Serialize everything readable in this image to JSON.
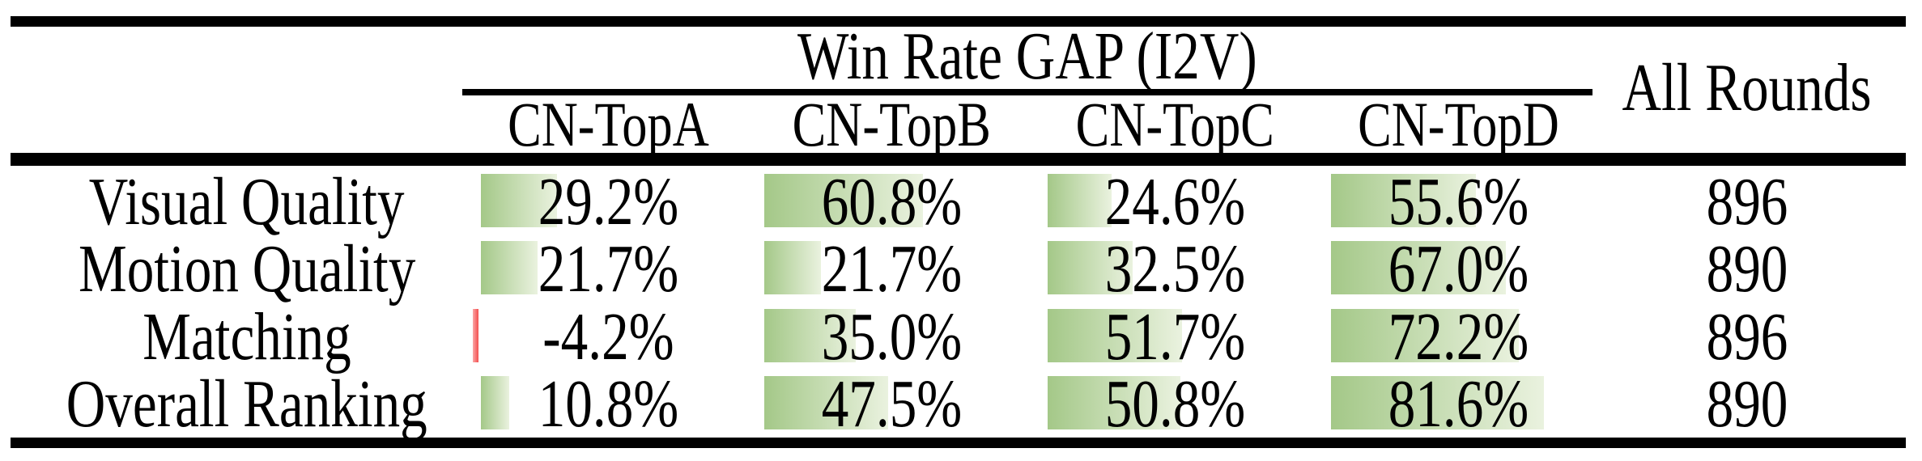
{
  "table": {
    "title": "Win Rate GAP (I2V)",
    "all_rounds_label": "All Rounds",
    "columns": [
      "CN-TopA",
      "CN-TopB",
      "CN-TopC",
      "CN-TopD"
    ],
    "rows": [
      {
        "label": "Visual Quality",
        "values": [
          29.2,
          60.8,
          24.6,
          55.6
        ],
        "display": [
          "29.2%",
          "60.8%",
          "24.6%",
          "55.6%"
        ],
        "all_rounds": "896"
      },
      {
        "label": "Motion Quality",
        "values": [
          21.7,
          21.7,
          32.5,
          67.0
        ],
        "display": [
          "21.7%",
          "21.7%",
          "32.5%",
          "67.0%"
        ],
        "all_rounds": "890"
      },
      {
        "label": "Matching",
        "values": [
          -4.2,
          35.0,
          51.7,
          72.2
        ],
        "display": [
          "-4.2%",
          "35.0%",
          "51.7%",
          "72.2%"
        ],
        "all_rounds": "896"
      },
      {
        "label": "Overall Ranking",
        "values": [
          10.8,
          47.5,
          50.8,
          81.6
        ],
        "display": [
          "10.8%",
          "47.5%",
          "50.8%",
          "81.6%"
        ],
        "all_rounds": "890"
      }
    ],
    "colors": {
      "bar_green_start": "#a4c888",
      "bar_green_end": "#eaf2df",
      "bar_negative_light": "#fba6a6",
      "bar_negative_dark": "#f34f4f",
      "rule_color": "#000000",
      "text_color": "#000000"
    }
  },
  "chart_data": {
    "type": "table",
    "title": "Win Rate GAP (I2V)",
    "categories": [
      "Visual Quality",
      "Motion Quality",
      "Matching",
      "Overall Ranking"
    ],
    "series": [
      {
        "name": "CN-TopA",
        "values": [
          29.2,
          21.7,
          -4.2,
          10.8
        ]
      },
      {
        "name": "CN-TopB",
        "values": [
          60.8,
          21.7,
          35.0,
          47.5
        ]
      },
      {
        "name": "CN-TopC",
        "values": [
          24.6,
          32.5,
          51.7,
          50.8
        ]
      },
      {
        "name": "CN-TopD",
        "values": [
          55.6,
          67.0,
          72.2,
          81.6
        ]
      },
      {
        "name": "All Rounds",
        "values": [
          896,
          890,
          896,
          890
        ]
      }
    ],
    "value_unit": "%",
    "notes": "Green data bars proportional to win-rate gap; negative value shown with small red bar"
  }
}
